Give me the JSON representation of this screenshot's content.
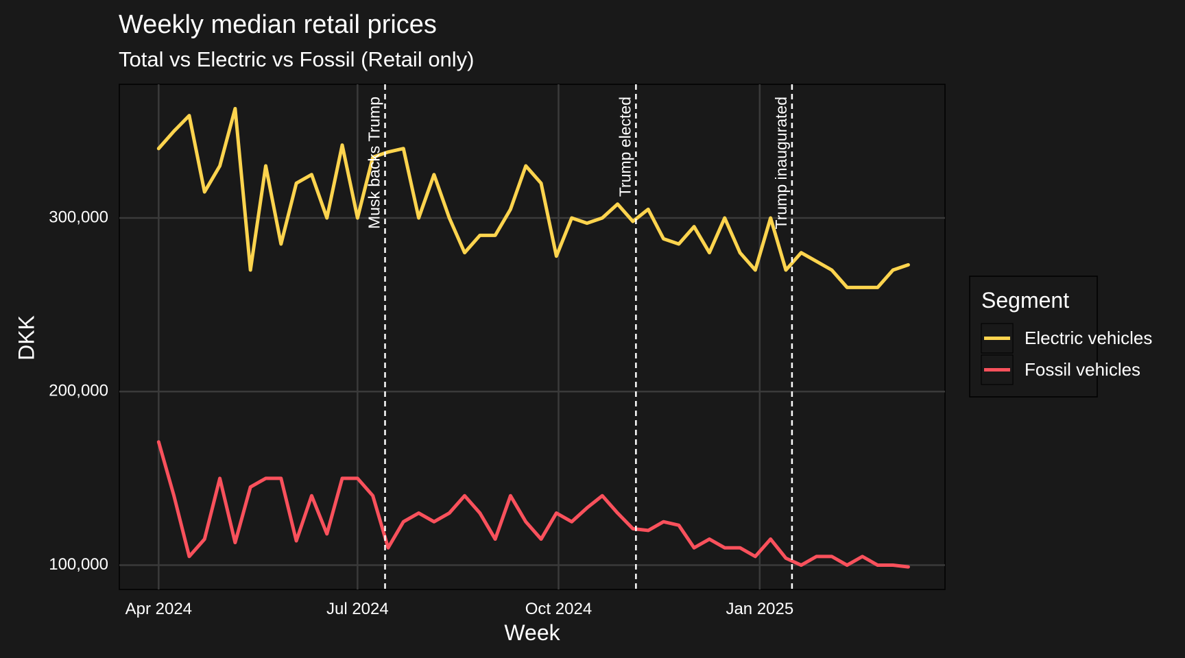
{
  "chart_data": {
    "type": "line",
    "title": "Weekly median retail prices",
    "subtitle": "Total vs Electric vs Fossil (Retail only)",
    "x_label": "Week",
    "y_label": "DKK",
    "legend_title": "Segment",
    "legend_position": "right",
    "grid": true,
    "x": [
      0,
      1,
      2,
      3,
      4,
      5,
      6,
      7,
      8,
      9,
      10,
      11,
      12,
      13,
      14,
      15,
      16,
      17,
      18,
      19,
      20,
      21,
      22,
      23,
      24,
      25,
      26,
      27,
      28,
      29,
      30,
      31,
      32,
      33,
      34,
      35,
      36,
      37,
      38,
      39,
      40,
      41,
      42,
      43,
      44,
      45,
      46,
      47,
      48,
      49
    ],
    "xlim": [
      -2.57,
      51.4
    ],
    "xticks": [
      {
        "value": 0,
        "label": "Apr 2024"
      },
      {
        "value": 13,
        "label": "Jul 2024"
      },
      {
        "value": 26.14,
        "label": "Oct 2024"
      },
      {
        "value": 39.29,
        "label": "Jan 2025"
      }
    ],
    "ylim": [
      86000,
      377000
    ],
    "yticks": [
      {
        "value": 100000,
        "label": "100,000"
      },
      {
        "value": 200000,
        "label": "200,000"
      },
      {
        "value": 300000,
        "label": "300,000"
      }
    ],
    "series": [
      {
        "name": "Electric vehicles",
        "color": "#fdd44e",
        "values": [
          340000,
          350000,
          359000,
          315000,
          330000,
          363000,
          270000,
          330000,
          285000,
          320000,
          325000,
          300000,
          342000,
          300000,
          335000,
          338000,
          340000,
          300000,
          325000,
          300000,
          280000,
          290000,
          290000,
          305000,
          330000,
          320000,
          278000,
          300000,
          297000,
          300000,
          308000,
          298000,
          305000,
          288000,
          285000,
          295000,
          280000,
          300000,
          280000,
          270000,
          300000,
          270000,
          280000,
          275000,
          270000,
          260000,
          260000,
          260000,
          270000,
          273000
        ]
      },
      {
        "name": "Fossil vehicles",
        "color": "#f9515c",
        "values": [
          171000,
          140000,
          105000,
          115000,
          150000,
          113000,
          145000,
          150000,
          150000,
          114000,
          140000,
          118000,
          150000,
          150000,
          140000,
          110000,
          125000,
          130000,
          125000,
          130000,
          140000,
          130000,
          115000,
          140000,
          125000,
          115000,
          130000,
          125000,
          133000,
          140000,
          130000,
          121000,
          120000,
          125000,
          123000,
          110000,
          115000,
          110000,
          110000,
          105000,
          115000,
          104000,
          100000,
          105000,
          105000,
          100000,
          105000,
          100000,
          100000,
          99000
        ]
      }
    ],
    "annotations": [
      {
        "label": "Musk backs Trump",
        "x": 14.8
      },
      {
        "label": "Trump elected",
        "x": 31.2
      },
      {
        "label": "Trump inaugurated",
        "x": 41.4
      }
    ]
  }
}
